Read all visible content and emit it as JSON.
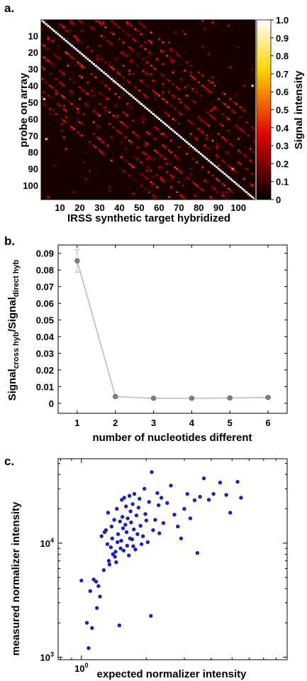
{
  "chart_data": [
    {
      "panel_label": "a.",
      "type": "heatmap",
      "xlabel": "IRSS synthetic target hybridized",
      "ylabel": "probe on array",
      "x_ticks": [
        "10",
        "20",
        "30",
        "40",
        "50",
        "60",
        "70",
        "80",
        "90",
        "100"
      ],
      "y_ticks": [
        "10",
        "20",
        "30",
        "40",
        "50",
        "60",
        "70",
        "80",
        "90",
        "100"
      ],
      "xlim": [
        1,
        108
      ],
      "ylim": [
        1,
        108
      ],
      "colorbar": {
        "label": "Signal intensity",
        "ticks": [
          "1.0",
          "0.9",
          "0.8",
          "0.7",
          "0.6",
          "0.5",
          "0.4",
          "0.3",
          "0.2",
          "0.1",
          "0"
        ],
        "range": [
          0,
          1
        ],
        "colormap": "hot"
      },
      "diagonal_value": 1.0,
      "background_value": 0.04
    },
    {
      "panel_label": "b.",
      "type": "line",
      "xlabel": "number of nucleotides different",
      "ylabel_main": "Signal",
      "ylabel_sub1": "cross hyb",
      "ylabel_mid": "/Signal",
      "ylabel_sub2": "direct hyb",
      "x": [
        1,
        2,
        3,
        4,
        5,
        6
      ],
      "y": [
        0.0855,
        0.004,
        0.003,
        0.003,
        0.0032,
        0.0035
      ],
      "yerr": [
        0.0068,
        0.0004,
        0.0003,
        0.0003,
        0.0003,
        0.0003
      ],
      "x_ticks": [
        "1",
        "2",
        "3",
        "4",
        "5",
        "6"
      ],
      "y_ticks": [
        "0",
        "0.01",
        "0.02",
        "0.03",
        "0.04",
        "0.05",
        "0.06",
        "0.07",
        "0.08",
        "0.09"
      ],
      "xlim": [
        0.5,
        6.5
      ],
      "ylim": [
        -0.006,
        0.095
      ],
      "line_color": "#bdbdbd",
      "marker_color": "#808080"
    },
    {
      "panel_label": "c.",
      "type": "scatter",
      "xlabel": "expected normalizer intensity",
      "ylabel": "measured normalizer intensity",
      "x_scale": "log",
      "y_scale": "log",
      "x_ticks": [
        {
          "base": "10",
          "exp": "0"
        }
      ],
      "y_ticks": [
        {
          "base": "10",
          "exp": "4"
        },
        {
          "base": "10",
          "exp": "3"
        }
      ],
      "xlim": [
        0.78,
        9.0
      ],
      "ylim": [
        950,
        55000
      ],
      "marker_color": "#1c22b8",
      "x": [
        1.0,
        1.06,
        1.08,
        1.12,
        1.14,
        1.1,
        1.17,
        1.2,
        1.22,
        1.18,
        1.24,
        1.27,
        1.28,
        1.3,
        1.32,
        1.33,
        1.34,
        1.35,
        1.37,
        1.38,
        1.39,
        1.4,
        1.42,
        1.43,
        1.44,
        1.45,
        1.46,
        1.47,
        1.48,
        1.5,
        1.51,
        1.52,
        1.53,
        1.54,
        1.55,
        1.56,
        1.57,
        1.58,
        1.6,
        1.61,
        1.62,
        1.63,
        1.64,
        1.66,
        1.67,
        1.68,
        1.69,
        1.7,
        1.72,
        1.73,
        1.74,
        1.75,
        1.76,
        1.78,
        1.8,
        1.82,
        1.84,
        1.86,
        1.88,
        1.9,
        1.93,
        1.96,
        1.98,
        2.0,
        2.03,
        2.06,
        2.1,
        2.12,
        2.15,
        2.2,
        2.25,
        2.28,
        2.3,
        2.35,
        2.4,
        2.5,
        2.6,
        2.7,
        2.8,
        2.9,
        3.0,
        3.1,
        3.2,
        3.35,
        3.45,
        3.55,
        3.7,
        3.9,
        4.1,
        4.4,
        4.7,
        4.9,
        5.3,
        5.5
      ],
      "y": [
        4700,
        2000,
        1200,
        1800,
        4800,
        3800,
        4600,
        4200,
        3400,
        2700,
        11500,
        5800,
        12500,
        13000,
        9800,
        18500,
        7000,
        6500,
        9200,
        14000,
        11000,
        8000,
        16000,
        7600,
        8400,
        6800,
        20000,
        10200,
        12000,
        1900,
        15500,
        9000,
        10500,
        24000,
        17000,
        13500,
        8600,
        25000,
        14500,
        21000,
        12500,
        9500,
        16500,
        7800,
        26000,
        11000,
        19000,
        15200,
        10800,
        22000,
        9400,
        13200,
        27000,
        8800,
        17500,
        12000,
        20500,
        24500,
        14200,
        9800,
        11500,
        30000,
        18000,
        15800,
        10200,
        23000,
        2300,
        42000,
        13000,
        16000,
        27500,
        21500,
        12200,
        25000,
        15000,
        22500,
        32000,
        17800,
        14000,
        11000,
        20000,
        27000,
        16500,
        23800,
        8200,
        25500,
        37000,
        24000,
        27000,
        34000,
        26500,
        18500,
        34500,
        25000
      ]
    }
  ]
}
